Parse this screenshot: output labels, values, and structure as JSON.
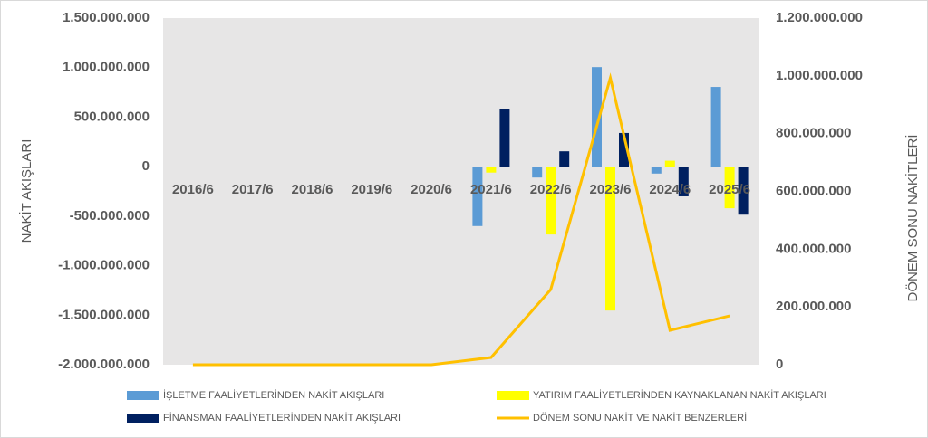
{
  "chart_data": {
    "type": "bar",
    "categories": [
      "2016/6",
      "2017/6",
      "2018/6",
      "2019/6",
      "2020/6",
      "2021/6",
      "2022/6",
      "2023/6",
      "2024/6",
      "2025/6"
    ],
    "ylabel": "NAKİT AKIŞLARI",
    "y2label": "DÖNEM SONU NAKİTLERİ",
    "ylim": [
      -2000000000,
      1500000000
    ],
    "yticks": [
      {
        "value": -2000000000,
        "label": "-2.000.000.000"
      },
      {
        "value": -1500000000,
        "label": "-1.500.000.000"
      },
      {
        "value": -1000000000,
        "label": "-1.000.000.000"
      },
      {
        "value": -500000000,
        "label": "-500.000.000"
      },
      0,
      {
        "value": 500000000,
        "label": "500.000.000"
      },
      {
        "value": 1000000000,
        "label": "1.000.000.000"
      },
      {
        "value": 1500000000,
        "label": "1.500.000.000"
      }
    ],
    "y2lim": [
      0,
      1200000000
    ],
    "y2ticks": [
      0,
      {
        "value": 200000000,
        "label": "200.000.000"
      },
      {
        "value": 400000000,
        "label": "400.000.000"
      },
      {
        "value": 600000000,
        "label": "600.000.000"
      },
      {
        "value": 800000000,
        "label": "800.000.000"
      },
      {
        "value": 1000000000,
        "label": "1.000.000.000"
      },
      {
        "value": 1200000000,
        "label": "1.200.000.000"
      }
    ],
    "series": [
      {
        "name": "İŞLETME FAALİYETLERİNDEN NAKİT AKIŞLARI",
        "color": "#5b9bd5",
        "values": [
          null,
          null,
          null,
          null,
          null,
          -600000000,
          -110000000,
          1005000000,
          -70000000,
          805000000
        ]
      },
      {
        "name": "YATIRIM FAALİYETLERİNDEN KAYNAKLANAN NAKİT AKIŞLARI",
        "color": "#ffff00",
        "values": [
          null,
          null,
          null,
          null,
          null,
          -60000000,
          -685000000,
          -1453000000,
          60000000,
          -420000000
        ]
      },
      {
        "name": "FİNANSMAN FAALİYETLERİNDEN NAKİT AKIŞLARI",
        "color": "#002060",
        "values": [
          null,
          null,
          null,
          null,
          null,
          585000000,
          155000000,
          340000000,
          -300000000,
          -485000000
        ]
      },
      {
        "name": "DÖNEM SONU NAKİT VE NAKİT BENZERLERİ",
        "color": "#ffc000",
        "type": "line",
        "axis": "y2",
        "values": [
          0,
          0,
          0,
          0,
          0,
          25000000,
          260000000,
          993000000,
          119000000,
          169000000
        ]
      }
    ]
  }
}
